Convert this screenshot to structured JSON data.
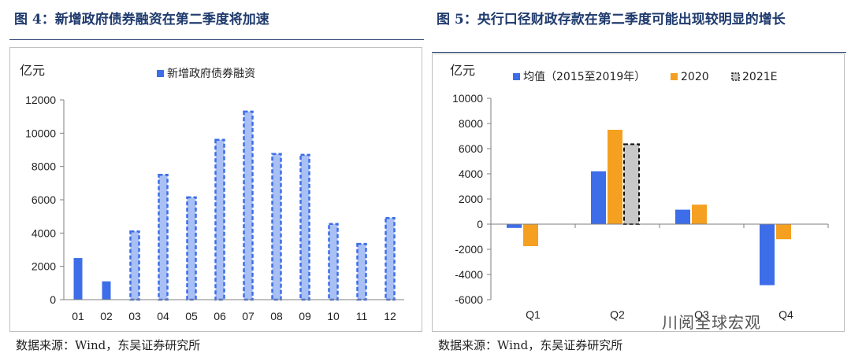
{
  "left": {
    "title": "图 4：新增政府债券融资在第二季度将加速",
    "source": "数据来源：Wind，东吴证券研究所",
    "chart_data": {
      "type": "bar",
      "unit": "亿元",
      "categories": [
        "01",
        "02",
        "03",
        "04",
        "05",
        "06",
        "07",
        "08",
        "09",
        "10",
        "11",
        "12"
      ],
      "series": [
        {
          "name": "新增政府债券融资",
          "values": [
            2500,
            1100,
            4100,
            7500,
            6150,
            9600,
            11300,
            8750,
            8700,
            4550,
            3350,
            4900
          ],
          "styles": [
            "solid",
            "solid",
            "dashed",
            "dashed",
            "dashed",
            "dashed",
            "dashed",
            "dashed",
            "dashed",
            "dashed",
            "dashed",
            "dashed"
          ],
          "color": "#3d6de8"
        }
      ],
      "ylim": [
        0,
        12000
      ],
      "yticks": [
        "0",
        "2000",
        "4000",
        "6000",
        "8000",
        "10000",
        "12000"
      ]
    }
  },
  "right": {
    "title": "图 5：央行口径财政存款在第二季度可能出现较明显的增长",
    "source": "数据来源：Wind，东吴证券研究所",
    "chart_data": {
      "type": "bar",
      "unit": "亿元",
      "categories": [
        "Q1",
        "Q2",
        "Q3",
        "Q4"
      ],
      "series": [
        {
          "name": "均值（2015至2019年）",
          "values": [
            -300,
            4200,
            1150,
            -4850
          ],
          "color": "#3d6de8"
        },
        {
          "name": "2020",
          "values": [
            -1750,
            7500,
            1550,
            -1200
          ],
          "color": "#f5a020"
        },
        {
          "name": "2021E",
          "values": [
            null,
            6350,
            null,
            null
          ],
          "color": "#c8c8c8"
        }
      ],
      "ylim": [
        -6000,
        10000
      ],
      "yticks": [
        "-6000",
        "-4000",
        "-2000",
        "0",
        "2000",
        "4000",
        "6000",
        "8000",
        "10000"
      ]
    }
  },
  "watermark": "川阅全球宏观"
}
